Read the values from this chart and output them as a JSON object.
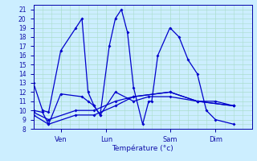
{
  "background_color": "#cceeff",
  "grid_color": "#aaddcc",
  "line_color": "#0000cc",
  "ylim": [
    8,
    21.5
  ],
  "yticks": [
    8,
    9,
    10,
    11,
    12,
    13,
    14,
    15,
    16,
    17,
    18,
    19,
    20,
    21
  ],
  "xtick_labels": [
    "Ven",
    "Lun",
    "Sam",
    "Dim"
  ],
  "xtick_positions": [
    9,
    24,
    45,
    60
  ],
  "xlim": [
    0,
    72
  ],
  "xlabel": "Température (°c)",
  "series": [
    [
      [
        0,
        13
      ],
      [
        3,
        10
      ],
      [
        5,
        9.8
      ],
      [
        9,
        16.5
      ],
      [
        14,
        19
      ],
      [
        16,
        20
      ],
      [
        18,
        12
      ],
      [
        20,
        10.5
      ],
      [
        22,
        9.5
      ],
      [
        25,
        17
      ],
      [
        27,
        20
      ],
      [
        29,
        21
      ],
      [
        31,
        18.5
      ],
      [
        33,
        12.5
      ],
      [
        36,
        8.5
      ],
      [
        38,
        11
      ],
      [
        39,
        11
      ],
      [
        41,
        16
      ],
      [
        45,
        19
      ],
      [
        48,
        18
      ],
      [
        51,
        15.5
      ],
      [
        54,
        14
      ],
      [
        57,
        10
      ],
      [
        60,
        9
      ],
      [
        66,
        8.5
      ]
    ],
    [
      [
        0,
        10
      ],
      [
        3,
        9.8
      ],
      [
        5,
        8.5
      ],
      [
        9,
        11.8
      ],
      [
        16,
        11.5
      ],
      [
        18,
        11
      ],
      [
        20,
        10.5
      ],
      [
        22,
        9.5
      ],
      [
        27,
        12
      ],
      [
        33,
        11
      ],
      [
        38,
        11.5
      ],
      [
        45,
        11.5
      ],
      [
        54,
        11
      ],
      [
        60,
        11
      ],
      [
        66,
        10.5
      ]
    ],
    [
      [
        0,
        9.8
      ],
      [
        5,
        9
      ],
      [
        14,
        10
      ],
      [
        20,
        10
      ],
      [
        27,
        11
      ],
      [
        33,
        11.5
      ],
      [
        45,
        12
      ],
      [
        54,
        11
      ],
      [
        66,
        10.5
      ]
    ],
    [
      [
        0,
        9.5
      ],
      [
        5,
        8.5
      ],
      [
        14,
        9.5
      ],
      [
        20,
        9.5
      ],
      [
        27,
        10.5
      ],
      [
        33,
        11.5
      ],
      [
        45,
        12
      ],
      [
        54,
        11
      ],
      [
        66,
        10.5
      ]
    ]
  ]
}
